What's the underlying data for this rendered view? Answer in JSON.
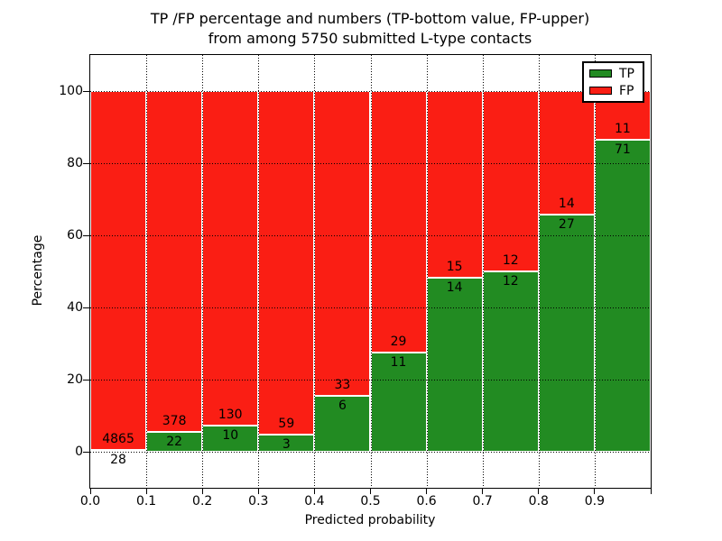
{
  "chart_data": {
    "type": "bar",
    "stacked": true,
    "orientation": "vertical",
    "title_lines": [
      "TP /FP percentage and numbers (TP-bottom value, FP-upper)",
      "from among 5750 submitted L-type contacts"
    ],
    "xlabel": "Predicted probability",
    "ylabel": "Percentage",
    "xlim": [
      0.0,
      1.0
    ],
    "ylim": [
      -10,
      110
    ],
    "bin_width": 0.1,
    "grid": "dotted",
    "background": "#ffffff",
    "axis_color": "#000000",
    "total_contacts": 5750,
    "categories": [
      "0.0-0.1",
      "0.1-0.2",
      "0.2-0.3",
      "0.3-0.4",
      "0.4-0.5",
      "0.5-0.6",
      "0.6-0.7",
      "0.7-0.8",
      "0.8-0.9",
      "0.9-1.0"
    ],
    "series": [
      {
        "name": "TP",
        "color": "#228b22",
        "counts": [
          28,
          22,
          10,
          3,
          6,
          11,
          14,
          12,
          27,
          71
        ]
      },
      {
        "name": "FP",
        "color": "#fa1e14",
        "counts": [
          4865,
          378,
          130,
          59,
          33,
          29,
          15,
          12,
          14,
          11
        ]
      }
    ],
    "tp_percent_of_bin": [
      0.57,
      5.5,
      7.14,
      4.84,
      15.38,
      27.5,
      48.28,
      50.0,
      65.85,
      86.59
    ],
    "xticks": [
      "0.0",
      "0.1",
      "0.2",
      "0.3",
      "0.4",
      "0.5",
      "0.6",
      "0.7",
      "0.8",
      "0.9"
    ],
    "yticks": [
      0,
      20,
      40,
      60,
      80,
      100
    ],
    "legend": {
      "position": "upper right",
      "entries": [
        "TP",
        "FP"
      ]
    }
  }
}
